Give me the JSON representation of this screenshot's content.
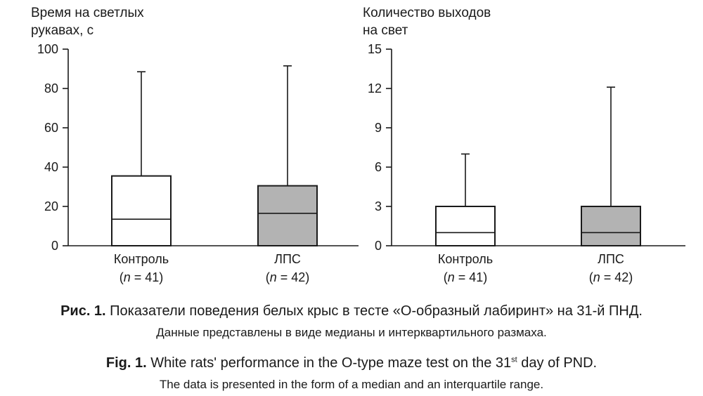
{
  "chart_data": [
    {
      "type": "boxplot",
      "ylabel_lines": [
        "Время на светлых",
        "рукавах, с"
      ],
      "ylim": [
        0,
        100
      ],
      "yticks": [
        0,
        20,
        40,
        60,
        80,
        100
      ],
      "groups": [
        {
          "label": "Контроль",
          "n_prefix": "(",
          "n_var": "n",
          "n_suffix": " = 41)",
          "fill": "#ffffff",
          "q1": 0,
          "median": 13.5,
          "q3": 35.5,
          "whisker_min": 0,
          "whisker_max": 88.5
        },
        {
          "label": "ЛПС",
          "n_prefix": "(",
          "n_var": "n",
          "n_suffix": " = 42)",
          "fill": "#b3b3b3",
          "q1": 0,
          "median": 16.5,
          "q3": 30.5,
          "whisker_min": 0,
          "whisker_max": 91.5
        }
      ]
    },
    {
      "type": "boxplot",
      "ylabel_lines": [
        "Количество выходов",
        "на свет"
      ],
      "ylim": [
        0,
        15
      ],
      "yticks": [
        0,
        3,
        6,
        9,
        12,
        15
      ],
      "groups": [
        {
          "label": "Контроль",
          "n_prefix": "(",
          "n_var": "n",
          "n_suffix": " = 41)",
          "fill": "#ffffff",
          "q1": 0,
          "median": 1,
          "q3": 3,
          "whisker_min": 0,
          "whisker_max": 7
        },
        {
          "label": "ЛПС",
          "n_prefix": "(",
          "n_var": "n",
          "n_suffix": " = 42)",
          "fill": "#b3b3b3",
          "q1": 0,
          "median": 1,
          "q3": 3,
          "whisker_min": 0,
          "whisker_max": 12.1
        }
      ]
    }
  ],
  "caption": {
    "ru_label": "Рис. 1.",
    "ru_title": " Показатели поведения белых крыс в тесте «О-образный лабиринт» на 31-й ПНД.",
    "ru_note": "Данные представлены в виде медианы и интерквартильного размаха.",
    "en_label": "Fig. 1.",
    "en_title_before": " White rats' performance in the O-type maze test on the 31",
    "en_title_sup": "st",
    "en_title_after": " day of PND.",
    "en_note": "The data is presented in the form of a median and an interquartile range."
  }
}
